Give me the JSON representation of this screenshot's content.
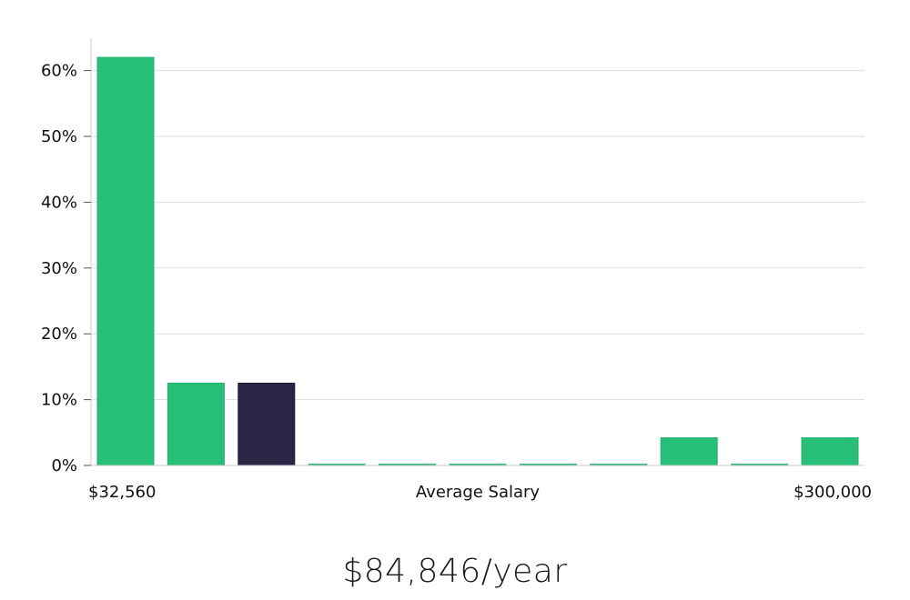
{
  "chart_data": {
    "type": "bar",
    "title": "",
    "xlabel": "Average Salary",
    "ylabel": "",
    "x_min_label": "$32,560",
    "x_max_label": "$300,000",
    "ylim": [
      0,
      65
    ],
    "yticks": [
      0,
      10,
      20,
      30,
      40,
      50,
      60
    ],
    "ytick_labels": [
      "0%",
      "10%",
      "20%",
      "30%",
      "40%",
      "50%",
      "60%"
    ],
    "grid": true,
    "values": [
      62,
      12.5,
      12.5,
      0.2,
      0.2,
      0.2,
      0.2,
      0.2,
      4.2,
      0.2,
      4.2
    ],
    "highlight_index": 2,
    "colors": {
      "bar": "#27bf78",
      "highlight": "#292646",
      "grid": "#dddddd",
      "axis": "#cccccc"
    }
  },
  "salary_text": "$84,846/year"
}
